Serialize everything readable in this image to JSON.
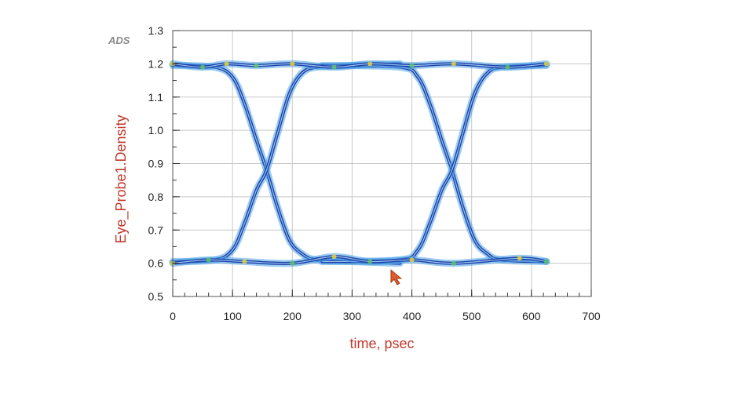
{
  "app": {
    "logo": "ADS"
  },
  "chart_data": {
    "type": "line",
    "title": "",
    "xlabel": "time, psec",
    "ylabel": "Eye_Probe1.Density",
    "xlim": [
      0,
      700
    ],
    "ylim": [
      0.5,
      1.3
    ],
    "xticks": [
      0,
      100,
      200,
      300,
      400,
      500,
      600,
      700
    ],
    "yticks": [
      0.5,
      0.6,
      0.7,
      0.8,
      0.9,
      1.0,
      1.1,
      1.2,
      1.3
    ],
    "grid": true,
    "legend": "none",
    "series": [
      {
        "values": [
          {
            "x": 0,
            "y": 1.195
          },
          {
            "x": 70,
            "y": 1.19
          },
          {
            "x": 100,
            "y": 1.16
          },
          {
            "x": 120,
            "y": 1.08
          },
          {
            "x": 140,
            "y": 0.97
          },
          {
            "x": 157,
            "y": 0.88
          },
          {
            "x": 175,
            "y": 0.77
          },
          {
            "x": 195,
            "y": 0.67
          },
          {
            "x": 215,
            "y": 0.63
          },
          {
            "x": 240,
            "y": 0.61
          },
          {
            "x": 300,
            "y": 0.605
          },
          {
            "x": 380,
            "y": 0.6
          }
        ]
      },
      {
        "values": [
          {
            "x": 0,
            "y": 0.605
          },
          {
            "x": 70,
            "y": 0.61
          },
          {
            "x": 100,
            "y": 0.64
          },
          {
            "x": 120,
            "y": 0.72
          },
          {
            "x": 140,
            "y": 0.82
          },
          {
            "x": 157,
            "y": 0.88
          },
          {
            "x": 175,
            "y": 0.99
          },
          {
            "x": 195,
            "y": 1.11
          },
          {
            "x": 215,
            "y": 1.17
          },
          {
            "x": 240,
            "y": 1.19
          },
          {
            "x": 300,
            "y": 1.195
          },
          {
            "x": 380,
            "y": 1.2
          }
        ]
      },
      {
        "values": [
          {
            "x": 250,
            "y": 1.195
          },
          {
            "x": 380,
            "y": 1.19
          },
          {
            "x": 410,
            "y": 1.16
          },
          {
            "x": 430,
            "y": 1.08
          },
          {
            "x": 450,
            "y": 0.97
          },
          {
            "x": 467,
            "y": 0.88
          },
          {
            "x": 485,
            "y": 0.77
          },
          {
            "x": 505,
            "y": 0.67
          },
          {
            "x": 525,
            "y": 0.63
          },
          {
            "x": 550,
            "y": 0.61
          },
          {
            "x": 625,
            "y": 0.605
          }
        ]
      },
      {
        "values": [
          {
            "x": 250,
            "y": 0.605
          },
          {
            "x": 380,
            "y": 0.61
          },
          {
            "x": 410,
            "y": 0.64
          },
          {
            "x": 430,
            "y": 0.72
          },
          {
            "x": 450,
            "y": 0.82
          },
          {
            "x": 467,
            "y": 0.88
          },
          {
            "x": 485,
            "y": 0.99
          },
          {
            "x": 505,
            "y": 1.11
          },
          {
            "x": 525,
            "y": 1.17
          },
          {
            "x": 550,
            "y": 1.19
          },
          {
            "x": 625,
            "y": 1.195
          }
        ]
      },
      {
        "values": [
          {
            "x": 0,
            "y": 1.2
          },
          {
            "x": 50,
            "y": 1.19
          },
          {
            "x": 90,
            "y": 1.2
          },
          {
            "x": 140,
            "y": 1.195
          },
          {
            "x": 200,
            "y": 1.2
          },
          {
            "x": 270,
            "y": 1.19
          },
          {
            "x": 330,
            "y": 1.2
          },
          {
            "x": 400,
            "y": 1.195
          },
          {
            "x": 470,
            "y": 1.2
          },
          {
            "x": 560,
            "y": 1.19
          },
          {
            "x": 625,
            "y": 1.2
          }
        ]
      },
      {
        "values": [
          {
            "x": 0,
            "y": 0.6
          },
          {
            "x": 60,
            "y": 0.61
          },
          {
            "x": 120,
            "y": 0.605
          },
          {
            "x": 200,
            "y": 0.6
          },
          {
            "x": 270,
            "y": 0.62
          },
          {
            "x": 330,
            "y": 0.605
          },
          {
            "x": 400,
            "y": 0.61
          },
          {
            "x": 470,
            "y": 0.6
          },
          {
            "x": 580,
            "y": 0.615
          },
          {
            "x": 625,
            "y": 0.605
          }
        ]
      }
    ],
    "colors": {
      "axis_title": "#c0392b",
      "trace_core": "#1f3fa8",
      "trace_glow": "#4aa3e8",
      "density_high": "#e0d23a",
      "density_mid": "#5cc46a",
      "grid": "#c8c8c8",
      "frame": "#555555",
      "cursor": "#e05a2b"
    }
  }
}
